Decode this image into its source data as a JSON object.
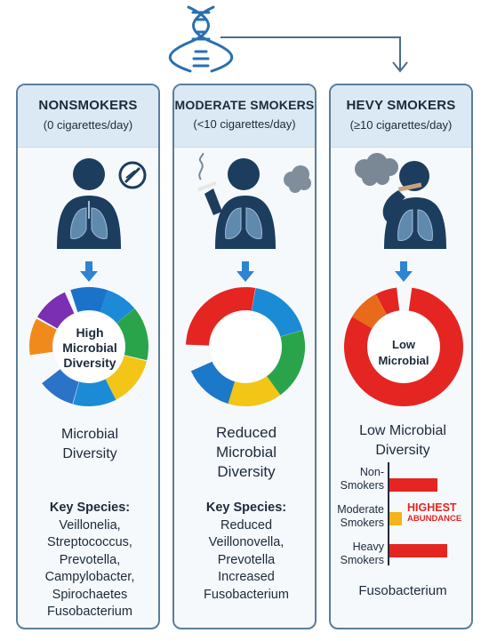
{
  "panels": [
    {
      "title": "NONSMOKERS",
      "subtitle": "(0 cigarettes/day)",
      "ring_label": [
        "High",
        "Microbial",
        "Diversity"
      ],
      "diversity_label": [
        "Microbial",
        "Diversity"
      ],
      "species_heading": "Key Species:",
      "species": [
        "Veillonelia,",
        "Streptococcus,",
        "Prevotella,",
        "Campylobacter,",
        "Spirochaetes",
        "Fusobacterium"
      ]
    },
    {
      "title": "MODERATE SMOKERS",
      "subtitle": "(<10 cigarettes/day)",
      "diversity_label": [
        "Reduced",
        "Microbial",
        "Diversity"
      ],
      "species_heading": "Key Species:",
      "species": [
        "Reduced",
        "Veillonovella,",
        "Prevotella",
        "Increased",
        "Fusobacterium"
      ]
    },
    {
      "title": "HEVY SMOKERS",
      "subtitle": "(≥10 cigarettes/day)",
      "ring_label": [
        "Low",
        "Microbial"
      ],
      "diversity_label": [
        "Low Microbial",
        "Diversity"
      ],
      "abundance": {
        "rows": [
          {
            "label": [
              "Non-",
              "Smokers"
            ],
            "value": 0.6
          },
          {
            "label": [
              "Moderate",
              "Smokers"
            ],
            "value": 0.15
          },
          {
            "label": [
              "Heavy",
              "Smokers"
            ],
            "value": 0.72
          }
        ],
        "highlight": [
          "HIGHEST",
          "ABUNDANCE"
        ],
        "bar_color": "#e52521",
        "mid_color": "#f5b21b"
      },
      "footer": "Fusobacterium"
    }
  ],
  "colors": {
    "navy": "#1c3d5e",
    "arrow": "#2d84d1",
    "border": "#5a7d9a",
    "header_bg": "#dbe9f5"
  }
}
